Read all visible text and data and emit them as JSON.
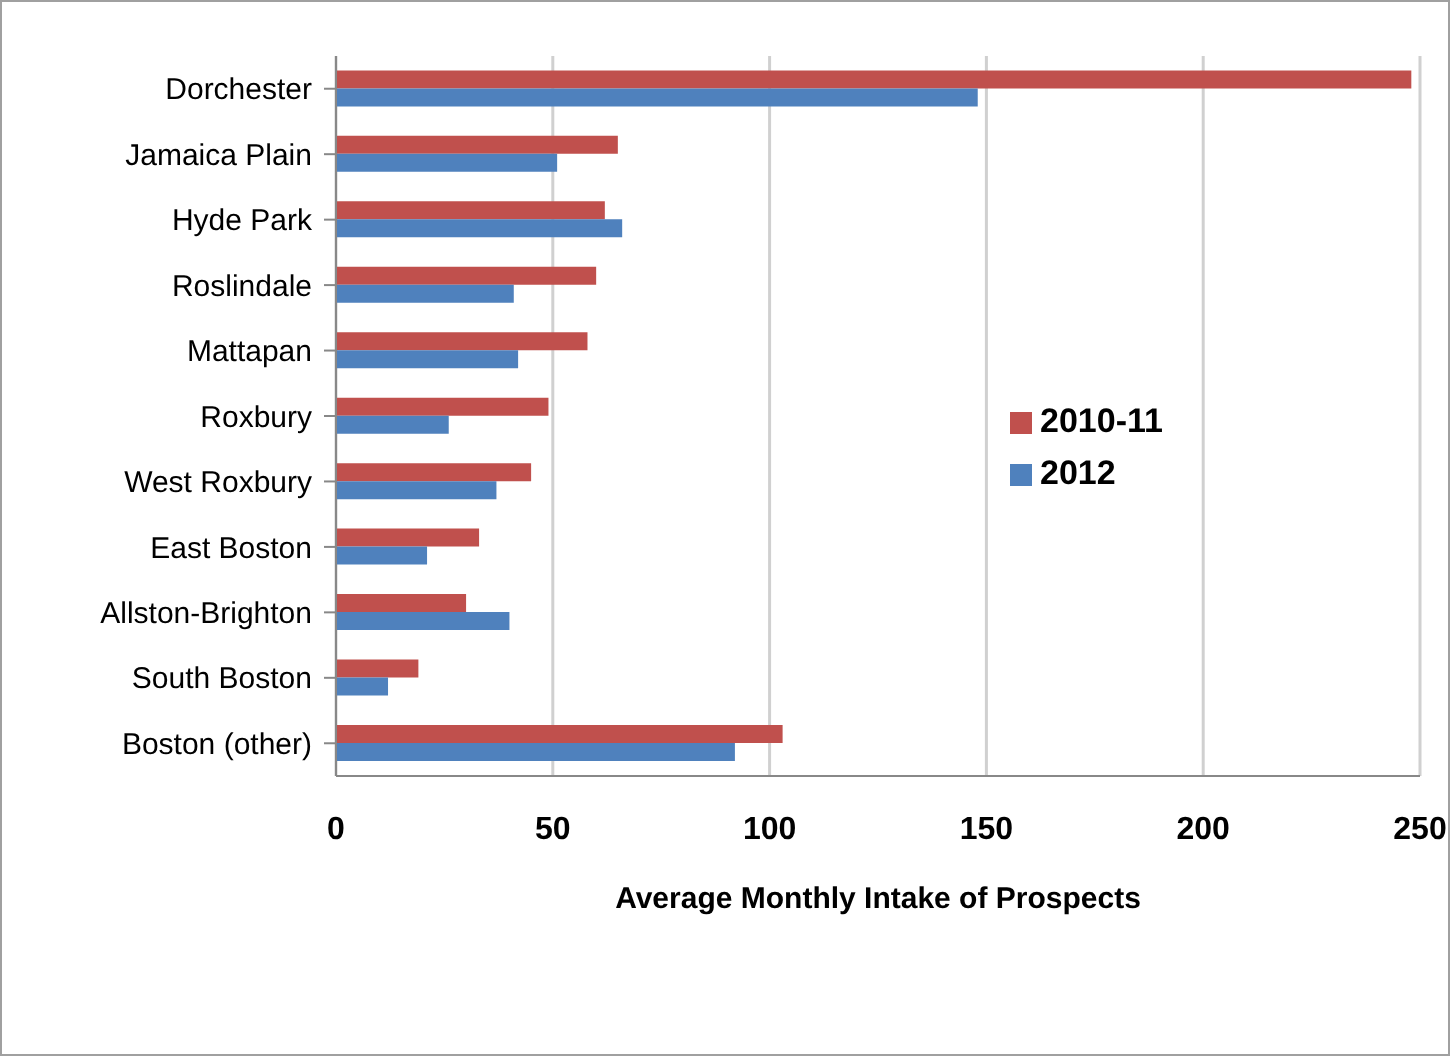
{
  "chart_data": {
    "type": "bar",
    "orientation": "horizontal",
    "xlabel": "Average Monthly Intake of Prospects",
    "categories": [
      "Dorchester",
      "Jamaica Plain",
      "Hyde Park",
      "Roslindale",
      "Mattapan",
      "Roxbury",
      "West Roxbury",
      "East Boston",
      "Allston-Brighton",
      "South Boston",
      "Boston (other)"
    ],
    "series": [
      {
        "name": "2010-11",
        "color": "#c0504d",
        "values": [
          248,
          65,
          62,
          60,
          58,
          49,
          45,
          33,
          30,
          19,
          103
        ]
      },
      {
        "name": "2012",
        "color": "#4f81bd",
        "values": [
          148,
          51,
          66,
          41,
          42,
          26,
          37,
          21,
          40,
          12,
          92
        ]
      }
    ],
    "xlim": [
      0,
      250
    ],
    "xticks": [
      0,
      50,
      100,
      150,
      200,
      250
    ],
    "grid": "x",
    "legend": "right"
  }
}
